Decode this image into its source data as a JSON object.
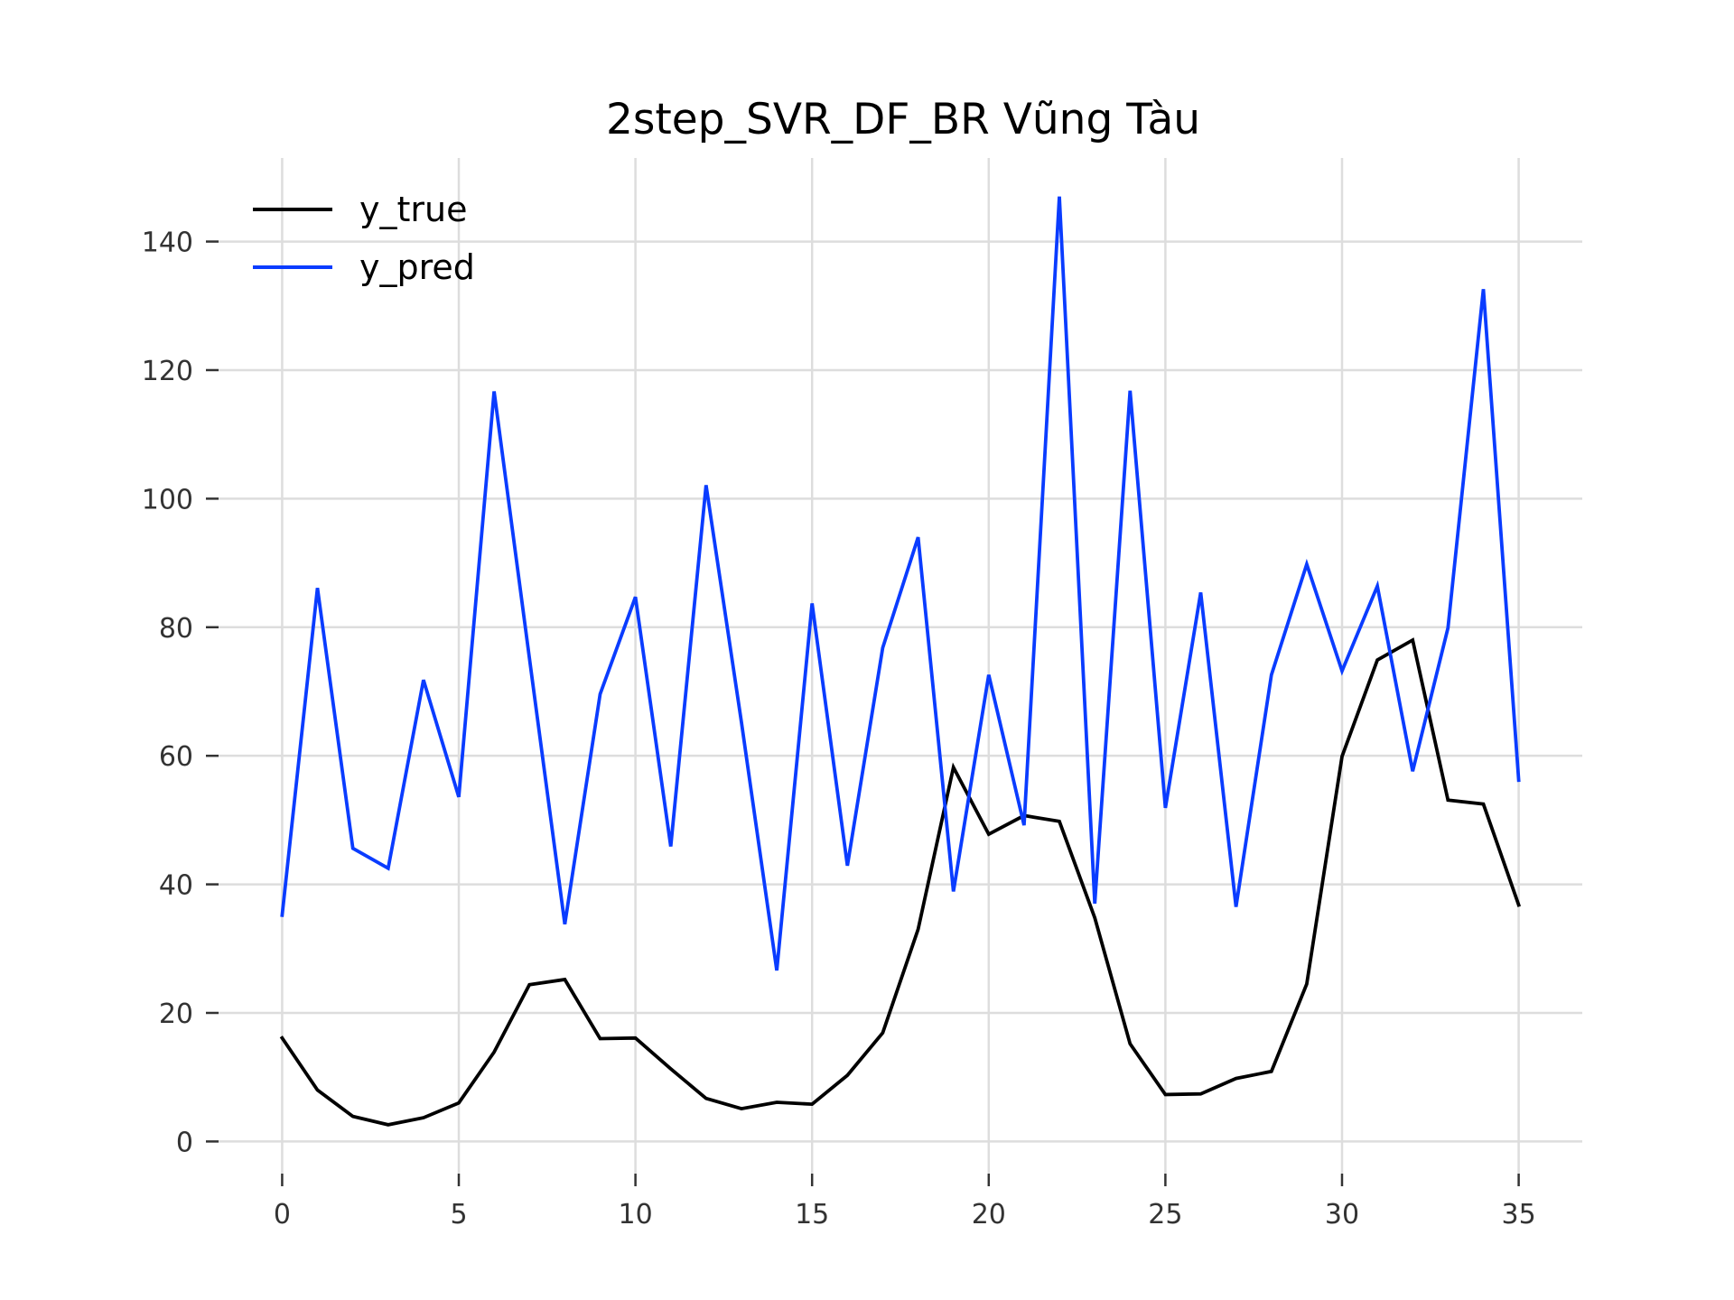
{
  "chart_data": {
    "type": "line",
    "title": "2step_SVR_DF_BR Vũng Tàu",
    "xlabel": "",
    "ylabel": "",
    "xlim": [
      -1.8,
      36.8
    ],
    "ylim": [
      -5,
      153
    ],
    "xticks": [
      0,
      5,
      10,
      15,
      20,
      25,
      30,
      35
    ],
    "yticks": [
      0,
      20,
      40,
      60,
      80,
      100,
      120,
      140
    ],
    "grid": true,
    "legend_position": "top-left",
    "x": [
      0,
      1,
      2,
      3,
      4,
      5,
      6,
      7,
      8,
      9,
      10,
      11,
      12,
      13,
      14,
      15,
      16,
      17,
      18,
      19,
      20,
      21,
      22,
      23,
      24,
      25,
      26,
      27,
      28,
      29,
      30,
      31,
      32,
      33,
      34,
      35
    ],
    "series": [
      {
        "name": "y_true",
        "color": "#000000",
        "values": [
          16.1,
          8.0,
          3.9,
          2.6,
          3.7,
          6.0,
          13.9,
          24.4,
          25.2,
          16.0,
          16.1,
          11.3,
          6.7,
          5.1,
          6.1,
          5.8,
          10.3,
          16.9,
          33.0,
          58.2,
          47.8,
          50.7,
          49.8,
          34.8,
          15.2,
          7.3,
          7.4,
          9.8,
          10.9,
          24.5,
          59.9,
          74.9,
          78.0,
          53.1,
          52.5,
          36.8
        ]
      },
      {
        "name": "y_pred",
        "color": "#0a3cff",
        "values": [
          35.2,
          86.1,
          45.6,
          42.5,
          71.8,
          53.6,
          116.7,
          75.2,
          33.8,
          69.6,
          84.7,
          45.9,
          102.1,
          65.2,
          26.6,
          83.7,
          42.9,
          76.8,
          94.0,
          38.9,
          72.6,
          49.2,
          147.0,
          37.0,
          116.8,
          51.9,
          85.4,
          36.5,
          72.6,
          89.8,
          73.2,
          86.4,
          57.6,
          79.9,
          132.6,
          56.2
        ]
      }
    ]
  }
}
